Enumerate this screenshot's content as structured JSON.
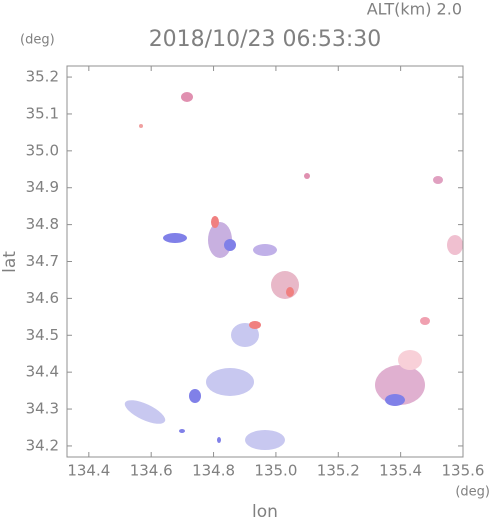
{
  "chart_data": {
    "type": "map",
    "title": "2018/10/23 06:53:30",
    "subtitle": "ALT(km) 2.0",
    "x_label": "lon",
    "y_label": "lat",
    "x_unit": "(deg)",
    "y_unit": "(deg)",
    "xlim": [
      134.33,
      135.6
    ],
    "ylim": [
      34.17,
      35.23
    ],
    "xticks": [
      134.4,
      134.6,
      134.8,
      {
        "value": 135.0,
        "label": "135.0"
      },
      135.2,
      135.4,
      135.6
    ],
    "yticks": [
      34.2,
      34.3,
      34.4,
      34.5,
      34.6,
      34.7,
      34.8,
      34.9,
      {
        "value": 35.0,
        "label": "35.0"
      },
      35.1,
      35.2
    ]
  }
}
